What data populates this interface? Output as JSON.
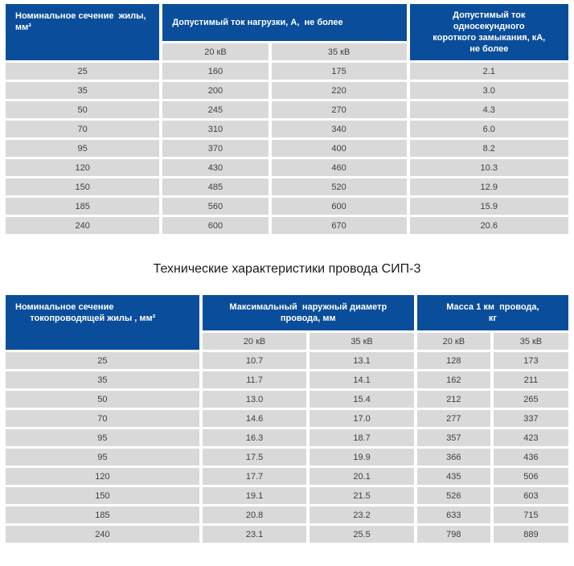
{
  "section_title": "Технические характеристики провода СИП-3",
  "table1": {
    "header": {
      "section": "Номинальное сечение  жилы,\nмм²",
      "load_current": "Допустимый ток нагрузки, А,  не более",
      "short_circuit": "Допустимый ток\nодносекундного\nкороткого замыкания, кА,\nне более",
      "kv20": "20 кВ",
      "kv35": "35 кВ"
    },
    "rows": [
      [
        "25",
        "160",
        "175",
        "2.1"
      ],
      [
        "35",
        "200",
        "220",
        "3.0"
      ],
      [
        "50",
        "245",
        "270",
        "4.3"
      ],
      [
        "70",
        "310",
        "340",
        "6.0"
      ],
      [
        "95",
        "370",
        "400",
        "8.2"
      ],
      [
        "120",
        "430",
        "460",
        "10.3"
      ],
      [
        "150",
        "485",
        "520",
        "12.9"
      ],
      [
        "185",
        "560",
        "600",
        "15.9"
      ],
      [
        "240",
        "600",
        "670",
        "20.6"
      ]
    ]
  },
  "table2": {
    "header": {
      "section": "Номинальное сечение\n      токопроводящей жилы , мм²",
      "diameter": "Максимальный  наружный диаметр\nпровода, мм",
      "mass": "Масса 1 км  провода,\nкг",
      "kv20_diameter": "20 кВ",
      "kv35_diameter": "35 кВ",
      "kv20_mass": "20 кВ",
      "kv35_mass": "35 кВ"
    },
    "rows": [
      [
        "25",
        "10.7",
        "13.1",
        "128",
        "173"
      ],
      [
        "35",
        "11.7",
        "14.1",
        "162",
        "211"
      ],
      [
        "50",
        "13.0",
        "15.4",
        "212",
        "265"
      ],
      [
        "70",
        "14.6",
        "17.0",
        "277",
        "337"
      ],
      [
        "95",
        "16.3",
        "18.7",
        "357",
        "423"
      ],
      [
        "95",
        "17.5",
        "19.9",
        "366",
        "436"
      ],
      [
        "120",
        "17.7",
        "20.1",
        "435",
        "506"
      ],
      [
        "150",
        "19.1",
        "21.5",
        "526",
        "603"
      ],
      [
        "185",
        "20.8",
        "23.2",
        "633",
        "715"
      ],
      [
        "240",
        "23.1",
        "25.5",
        "798",
        "889"
      ]
    ]
  }
}
